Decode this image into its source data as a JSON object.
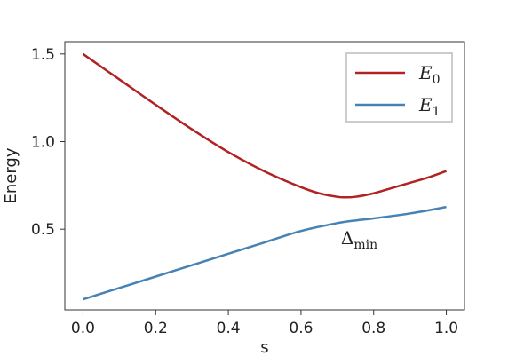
{
  "chart_data": {
    "type": "line",
    "title": "",
    "xlabel": "s",
    "ylabel": "Energy",
    "xlim": [
      -0.05,
      1.05
    ],
    "ylim": [
      0.04,
      1.57
    ],
    "xticks": [
      0.0,
      0.2,
      0.4,
      0.6,
      0.8,
      1.0
    ],
    "xtick_labels": [
      "0.0",
      "0.2",
      "0.4",
      "0.6",
      "0.8",
      "1.0"
    ],
    "yticks": [
      0.5,
      1.0,
      1.5
    ],
    "ytick_labels": [
      "0.5",
      "1.0",
      "1.5"
    ],
    "grid": false,
    "legend_position": "top-right",
    "series": [
      {
        "name": "E",
        "name_sub": "0",
        "color": "#b22222",
        "x": [
          0.0,
          0.1,
          0.2,
          0.3,
          0.4,
          0.5,
          0.6,
          0.65,
          0.7,
          0.72,
          0.75,
          0.8,
          0.85,
          0.9,
          0.95,
          1.0
        ],
        "y": [
          1.5,
          1.355,
          1.21,
          1.07,
          0.94,
          0.83,
          0.74,
          0.705,
          0.685,
          0.682,
          0.685,
          0.705,
          0.735,
          0.765,
          0.795,
          0.832
        ]
      },
      {
        "name": "E",
        "name_sub": "1",
        "color": "#4682b4",
        "x": [
          0.0,
          0.1,
          0.2,
          0.3,
          0.4,
          0.5,
          0.6,
          0.7,
          0.75,
          0.8,
          0.9,
          1.0
        ],
        "y": [
          0.1,
          0.165,
          0.23,
          0.295,
          0.36,
          0.425,
          0.49,
          0.535,
          0.55,
          0.562,
          0.59,
          0.627
        ]
      }
    ],
    "annotations": [
      {
        "text": "Δ",
        "sub": "min",
        "x": 0.71,
        "y": 0.45
      }
    ]
  }
}
